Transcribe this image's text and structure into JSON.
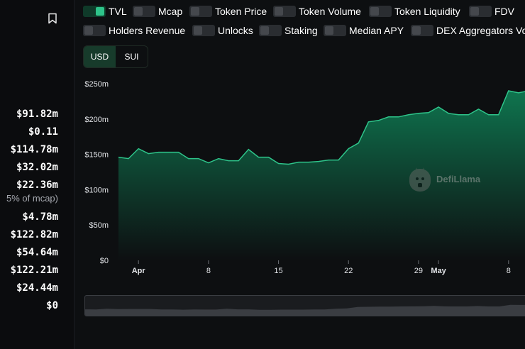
{
  "stats": [
    {
      "value": "$91.82m"
    },
    {
      "value": "$0.11"
    },
    {
      "value": "$114.78m"
    },
    {
      "value": "$32.02m"
    },
    {
      "value": "$22.36m",
      "sub": "5% of mcap)"
    },
    {
      "value": "$4.78m"
    },
    {
      "value": "$122.82m"
    },
    {
      "value": "$54.64m"
    },
    {
      "value": "$122.21m"
    },
    {
      "value": "$24.44m"
    },
    {
      "value": "$0"
    }
  ],
  "toggles": [
    {
      "label": "TVL",
      "on": true
    },
    {
      "label": "Mcap",
      "on": false
    },
    {
      "label": "Token Price",
      "on": false
    },
    {
      "label": "Token Volume",
      "on": false
    },
    {
      "label": "Token Liquidity",
      "on": false
    },
    {
      "label": "FDV",
      "on": false
    },
    {
      "label": "Holders Revenue",
      "on": false
    },
    {
      "label": "Unlocks",
      "on": false
    },
    {
      "label": "Staking",
      "on": false
    },
    {
      "label": "Median APY",
      "on": false
    },
    {
      "label": "DEX Aggregators Vo",
      "on": false
    }
  ],
  "currency": {
    "options": [
      "USD",
      "SUI"
    ],
    "selected": "USD"
  },
  "watermark": {
    "text": "DefiLlama"
  },
  "colors": {
    "accent": "#2ec48a",
    "area_top": "#0f7a52",
    "area_bottom": "#0d0f11",
    "line": "#2ec48a"
  },
  "chart_data": {
    "type": "area",
    "series": [
      {
        "values": [
          146,
          144,
          158,
          151,
          153,
          153,
          153,
          144,
          144,
          138,
          144,
          141,
          141,
          157,
          146,
          146,
          137,
          136,
          139,
          139,
          140,
          142,
          142,
          158,
          166,
          196,
          198,
          203,
          203,
          206,
          208,
          209,
          217,
          208,
          206,
          206,
          214,
          206,
          206,
          240,
          237,
          240
        ]
      }
    ],
    "x_start": "2024-03-30",
    "x_step_days": 1,
    "ylim": [
      0,
      250
    ],
    "yticks": [
      "$0",
      "$50m",
      "$100m",
      "$150m",
      "$200m",
      "$250m"
    ],
    "xticks": [
      {
        "label": "Apr",
        "date": "2024-04-01",
        "bold": true
      },
      {
        "label": "8",
        "date": "2024-04-08",
        "bold": false
      },
      {
        "label": "15",
        "date": "2024-04-15",
        "bold": false
      },
      {
        "label": "22",
        "date": "2024-04-22",
        "bold": false
      },
      {
        "label": "29",
        "date": "2024-04-29",
        "bold": false
      },
      {
        "label": "May",
        "date": "2024-05-01",
        "bold": true
      },
      {
        "label": "8",
        "date": "2024-05-08",
        "bold": false
      }
    ],
    "grid": false,
    "legend": "none"
  }
}
